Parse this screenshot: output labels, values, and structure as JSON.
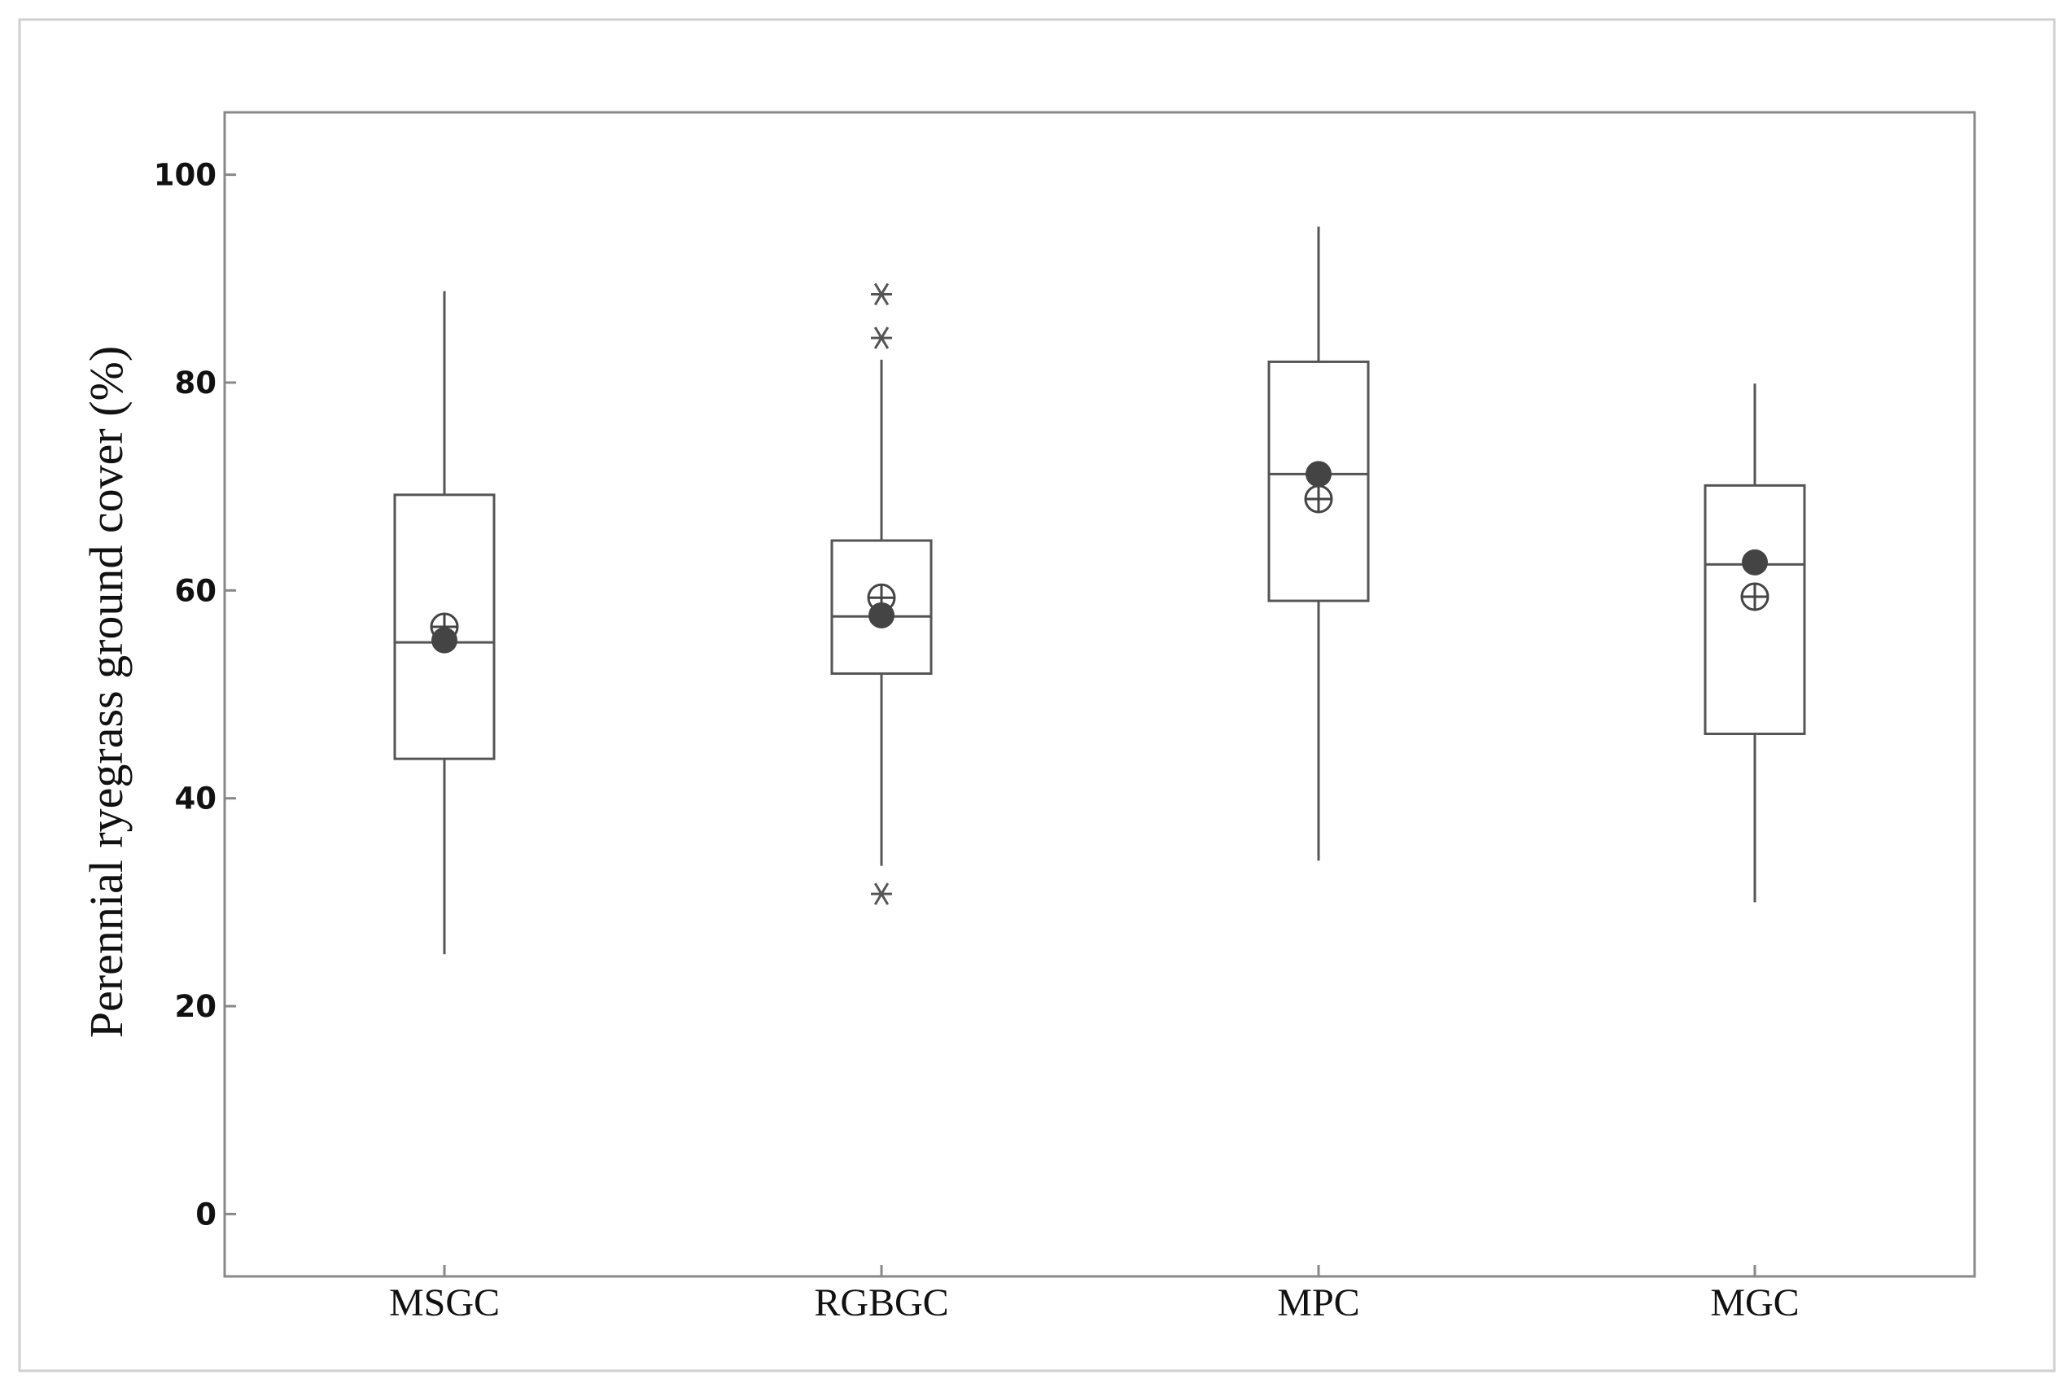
{
  "chart_data": {
    "type": "box",
    "title": "",
    "xlabel": "",
    "ylabel": "Perennial ryegrass ground cover (%)",
    "ylim": [
      -6,
      106
    ],
    "yticks": [
      0,
      20,
      40,
      60,
      80,
      100
    ],
    "ytick_labels": [
      "0",
      "20",
      "40",
      "60",
      "80",
      "100"
    ],
    "categories": [
      "MSGC",
      "RGBGC",
      "MPC",
      "MGC"
    ],
    "grid": false,
    "legend": "none",
    "colors": {
      "line": "#555555",
      "mean_marker": "#444444",
      "frame": "#888888"
    },
    "boxes": [
      {
        "category": "MSGC",
        "whisker_low": 25,
        "q1": 43.8,
        "median": 55,
        "q3": 69.2,
        "whisker_high": 88.8,
        "mean_filled": 55.2,
        "mean_open": 56.5,
        "outliers": []
      },
      {
        "category": "RGBGC",
        "whisker_low": 33.5,
        "q1": 52,
        "median": 57.5,
        "q3": 64.8,
        "whisker_high": 82.2,
        "mean_filled": 57.6,
        "mean_open": 59.3,
        "outliers": [
          30.8,
          84.3,
          88.5
        ]
      },
      {
        "category": "MPC",
        "whisker_low": 34,
        "q1": 59,
        "median": 71.2,
        "q3": 82,
        "whisker_high": 95,
        "mean_filled": 71.2,
        "mean_open": 68.8,
        "outliers": []
      },
      {
        "category": "MGC",
        "whisker_low": 30,
        "q1": 46.2,
        "median": 62.5,
        "q3": 70.1,
        "whisker_high": 79.9,
        "mean_filled": 62.7,
        "mean_open": 59.4,
        "outliers": []
      }
    ]
  }
}
